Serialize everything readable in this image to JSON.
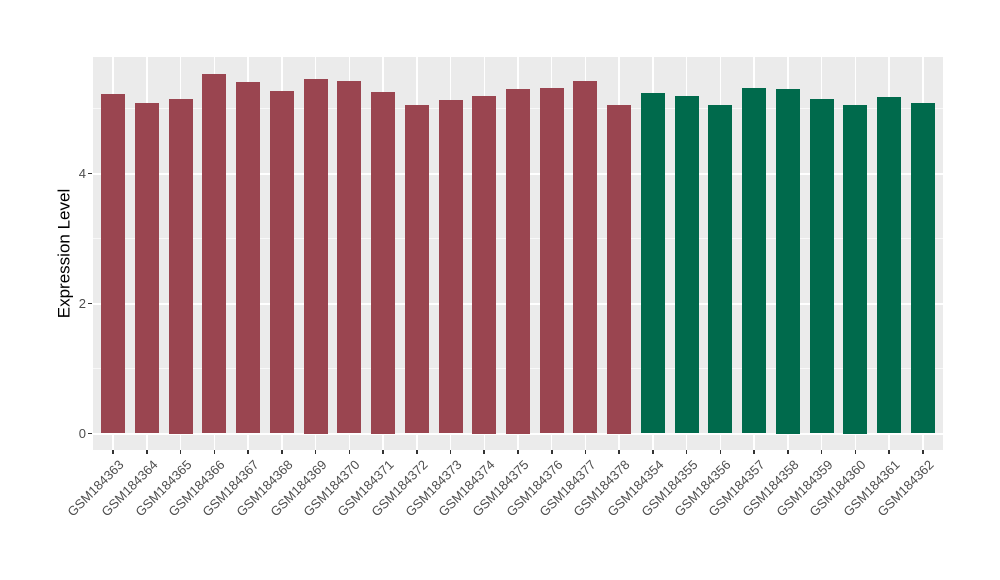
{
  "chart_data": {
    "type": "bar",
    "title": "",
    "xlabel": "",
    "ylabel": "Expression Level",
    "ylim": [
      0,
      5.79
    ],
    "yticks": [
      0,
      2,
      4
    ],
    "yticks_minor": [
      1,
      3,
      5
    ],
    "grid": true,
    "legend": "none",
    "panel_background": "#EBEBEB",
    "gridline_color": "#FFFFFF",
    "axis_text_color": "#4D4D4D",
    "categories": [
      "GSM184363",
      "GSM184364",
      "GSM184365",
      "GSM184366",
      "GSM184367",
      "GSM184368",
      "GSM184369",
      "GSM184370",
      "GSM184371",
      "GSM184372",
      "GSM184373",
      "GSM184374",
      "GSM184375",
      "GSM184376",
      "GSM184377",
      "GSM184378",
      "GSM184354",
      "GSM184355",
      "GSM184356",
      "GSM184357",
      "GSM184358",
      "GSM184359",
      "GSM184360",
      "GSM184361",
      "GSM184362"
    ],
    "values": [
      5.23,
      5.09,
      5.15,
      5.53,
      5.41,
      5.27,
      5.45,
      5.43,
      5.25,
      5.06,
      5.13,
      5.2,
      5.3,
      5.32,
      5.42,
      5.05,
      5.24,
      5.19,
      5.06,
      5.32,
      5.3,
      5.14,
      5.05,
      5.18,
      5.08
    ],
    "bar_colors": [
      "#9A4550",
      "#9A4550",
      "#9A4550",
      "#9A4550",
      "#9A4550",
      "#9A4550",
      "#9A4550",
      "#9A4550",
      "#9A4550",
      "#9A4550",
      "#9A4550",
      "#9A4550",
      "#9A4550",
      "#9A4550",
      "#9A4550",
      "#9A4550",
      "#006A4C",
      "#006A4C",
      "#006A4C",
      "#006A4C",
      "#006A4C",
      "#006A4C",
      "#006A4C",
      "#006A4C",
      "#006A4C"
    ],
    "group_colors": {
      "maroon": "#9A4550",
      "green": "#006A4C"
    }
  }
}
